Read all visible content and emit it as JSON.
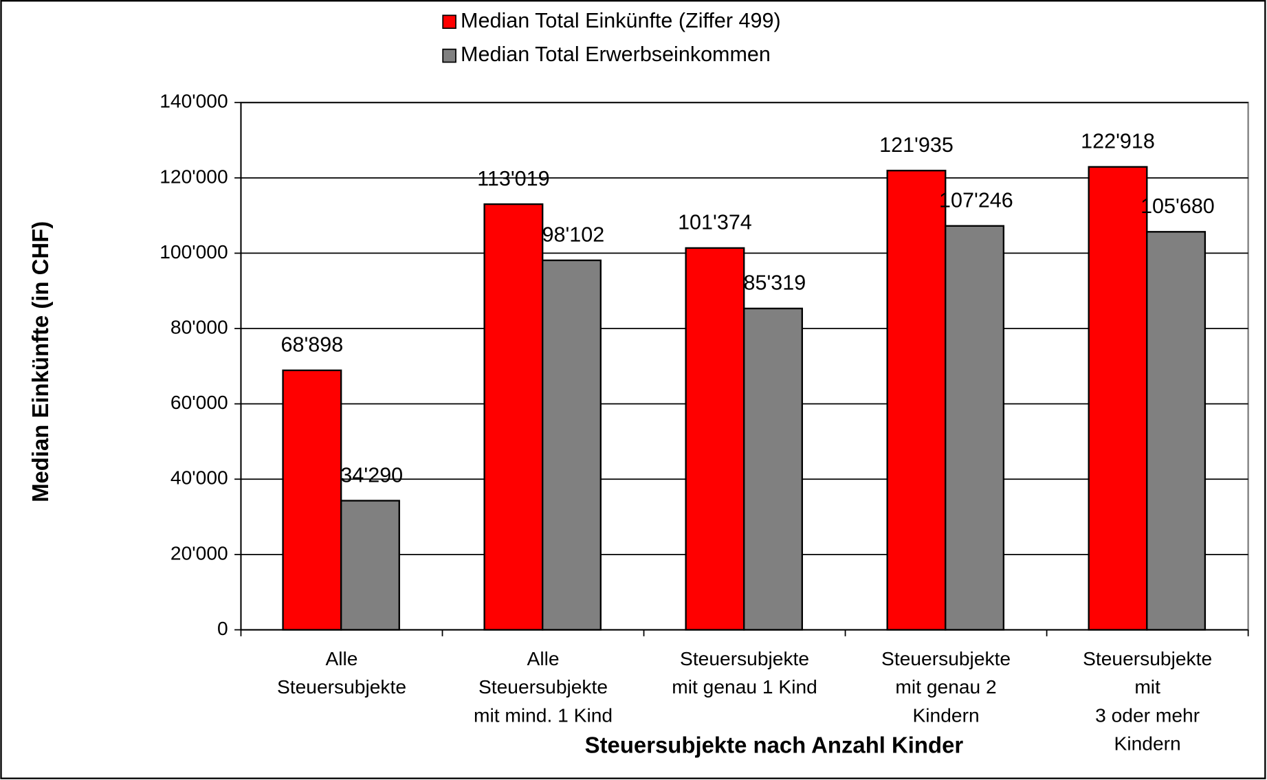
{
  "chart_data": {
    "type": "bar",
    "x_label": "Steuersubjekte nach Anzahl Kinder",
    "y_label": "Median Einkünfte (in CHF)",
    "categories": [
      "Alle\nSteuersubjekte",
      "Alle\nSteuersubjekte\nmit mind. 1 Kind",
      "Steuersubjekte\nmit genau 1 Kind",
      "Steuersubjekte\nmit genau 2\nKindern",
      "Steuersubjekte\nmit\n3 oder mehr\nKindern"
    ],
    "series": [
      {
        "name": "Median Total Einkünfte (Ziffer 499)",
        "color": "#ff0000",
        "values": [
          68898,
          113019,
          101374,
          121935,
          122918
        ],
        "value_labels": [
          "68'898",
          "113'019",
          "101'374",
          "121'935",
          "122'918"
        ]
      },
      {
        "name": "Median Total Erwerbseinkommen",
        "color": "#808080",
        "values": [
          34290,
          98102,
          85319,
          107246,
          105680
        ],
        "value_labels": [
          "34'290",
          "98'102",
          "85'319",
          "107'246",
          "105'680"
        ]
      }
    ],
    "ylim": [
      0,
      140000
    ],
    "yticks": [
      0,
      {
        "value": 20000,
        "label": "20'000"
      },
      {
        "value": 40000,
        "label": "40'000"
      },
      {
        "value": 60000,
        "label": "60'000"
      },
      {
        "value": 80000,
        "label": "80'000"
      },
      {
        "value": 100000,
        "label": "100'000"
      },
      {
        "value": 120000,
        "label": "120'000"
      },
      {
        "value": 140000,
        "label": "140'000"
      }
    ],
    "grid": true,
    "legend": "top"
  }
}
